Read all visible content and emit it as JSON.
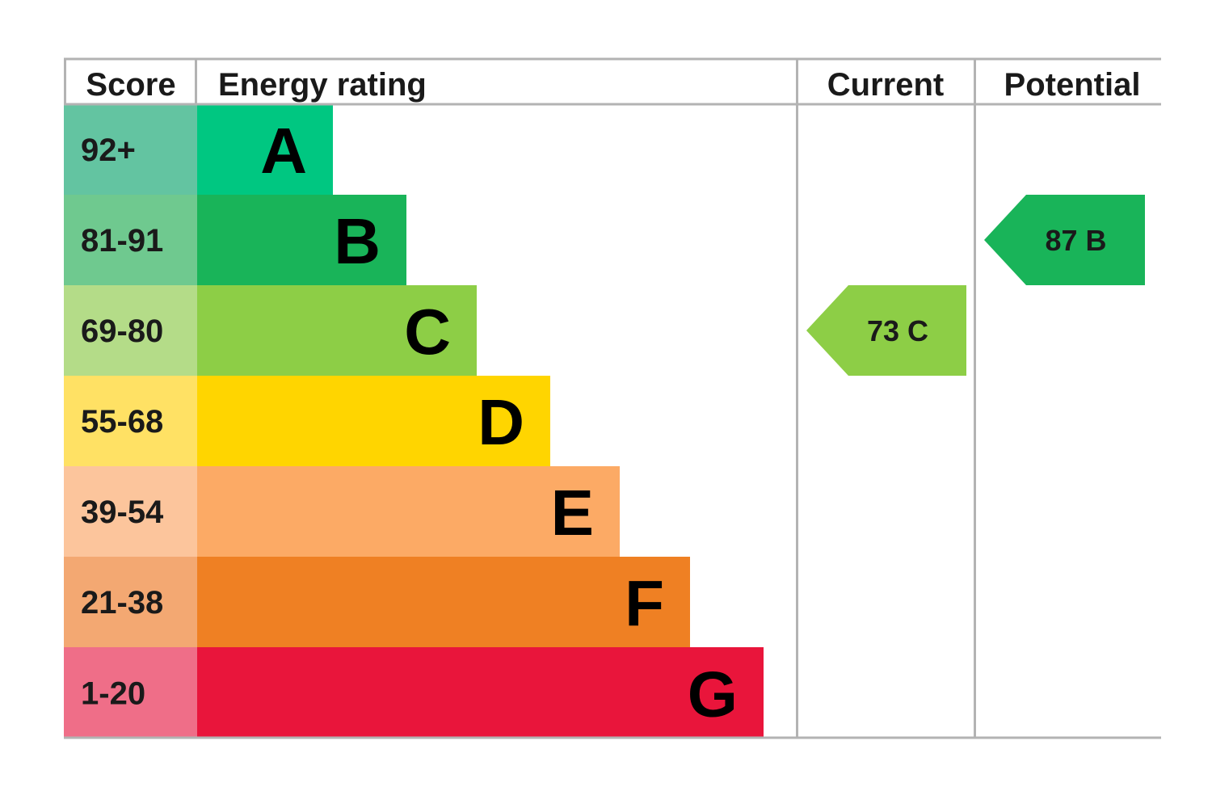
{
  "chart_data": {
    "type": "table",
    "headers": {
      "score": "Score",
      "energy_rating": "Energy rating",
      "current": "Current",
      "potential": "Potential"
    },
    "bands": [
      {
        "letter": "A",
        "score_range": "92+",
        "color": "#00c781",
        "score_color": "#63c4a1"
      },
      {
        "letter": "B",
        "score_range": "81-91",
        "color": "#19b459",
        "score_color": "#6fc98f"
      },
      {
        "letter": "C",
        "score_range": "69-80",
        "color": "#8dce46",
        "score_color": "#b4dc88"
      },
      {
        "letter": "D",
        "score_range": "55-68",
        "color": "#ffd500",
        "score_color": "#ffe164"
      },
      {
        "letter": "E",
        "score_range": "39-54",
        "color": "#fcaa65",
        "score_color": "#fcc59c"
      },
      {
        "letter": "F",
        "score_range": "21-38",
        "color": "#ef8023",
        "score_color": "#f3a872"
      },
      {
        "letter": "G",
        "score_range": "1-20",
        "color": "#e9153b",
        "score_color": "#ef6e88"
      }
    ],
    "current": {
      "score": "73",
      "band": "C",
      "color": "#8dce46"
    },
    "potential": {
      "score": "87",
      "band": "B",
      "color": "#19b459"
    }
  }
}
